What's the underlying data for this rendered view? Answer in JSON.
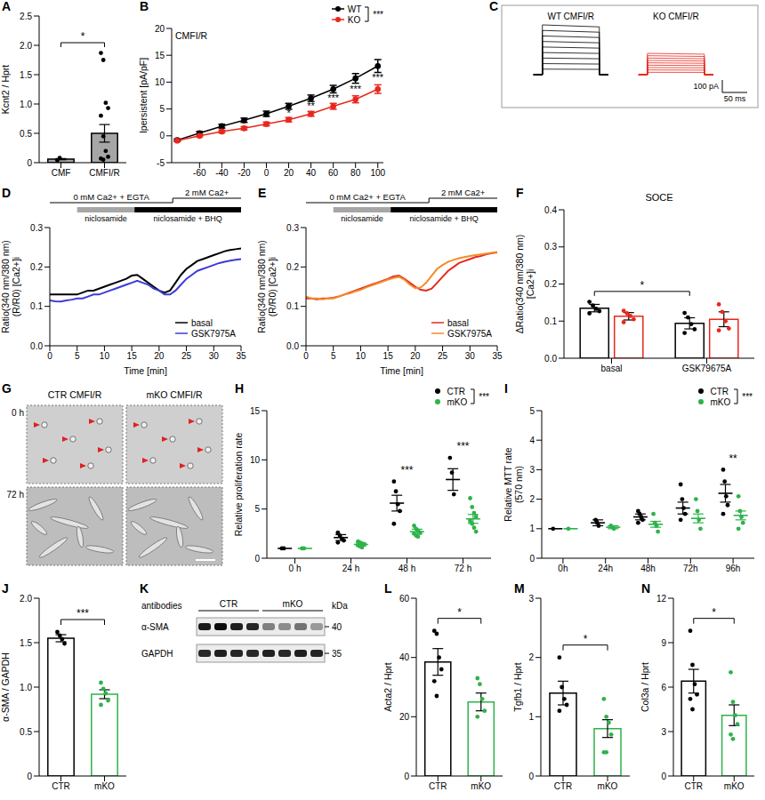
{
  "chart_data": [
    {
      "panel": "A",
      "type": "bar",
      "categories": [
        "CMF",
        "CMFI/R"
      ],
      "values": [
        0.06,
        0.5
      ],
      "errors": [
        0.01,
        0.15
      ],
      "points": [
        [
          0.04,
          0.08
        ],
        [
          1.87,
          1.75,
          1.02,
          0.93,
          0.8,
          0.45,
          0.2,
          0.1,
          0.07,
          0.05
        ]
      ],
      "color": "#a6a6a6",
      "y_label": "Kcnt2 / Hprt",
      "ylim": [
        0,
        2.5
      ],
      "yticks": [
        0,
        0.5,
        {
          "value": 1,
          "label": "1.0"
        },
        1.5,
        {
          "value": 2,
          "label": "2.0"
        },
        2.5
      ],
      "significance": {
        "between": [
          0,
          1
        ],
        "label": "*"
      }
    },
    {
      "panel": "B",
      "type": "line",
      "title": "CMFI/R",
      "x": [
        -80,
        -60,
        -40,
        -20,
        0,
        20,
        40,
        60,
        80,
        100
      ],
      "series": [
        {
          "name": "WT",
          "color": "#000000",
          "values": [
            -0.8,
            0.5,
            1.8,
            2.9,
            4.1,
            5.5,
            7.0,
            8.7,
            10.7,
            13.0
          ],
          "errors": [
            0.2,
            0.3,
            0.35,
            0.4,
            0.5,
            0.55,
            0.6,
            0.7,
            0.9,
            1.2
          ]
        },
        {
          "name": "KO",
          "color": "#e8281e",
          "values": [
            -0.9,
            0.0,
            0.8,
            1.4,
            2.2,
            3.0,
            4.1,
            5.5,
            6.8,
            8.7
          ],
          "errors": [
            0.15,
            0.2,
            0.25,
            0.3,
            0.35,
            0.4,
            0.45,
            0.55,
            0.65,
            0.8
          ]
        }
      ],
      "marker": "circle",
      "y_label": "Ipersistent [pA/pF]",
      "xlim": [
        -85,
        105
      ],
      "xticks": [
        -60,
        -40,
        -20,
        0,
        20,
        40,
        60,
        80,
        100
      ],
      "ylim": [
        -5,
        20
      ],
      "yticks": [
        -5,
        0,
        5,
        10,
        15,
        20
      ],
      "legend": "upper right",
      "legend_significance": "***",
      "annotations": [
        {
          "x": 20,
          "label": "*"
        },
        {
          "x": 40,
          "label": "**"
        },
        {
          "x": 60,
          "label": "***"
        },
        {
          "x": 80,
          "label": "***"
        },
        {
          "x": 100,
          "label": "***"
        }
      ]
    },
    {
      "panel": "C",
      "type": "traces",
      "labels": [
        "WT CMFI/R",
        "KO CMFI/R"
      ],
      "colors": [
        "#000000",
        "#e8281e"
      ],
      "scale_y": "100 pA",
      "scale_x": "50 ms"
    },
    {
      "panel": "D",
      "type": "line",
      "x": [
        0,
        1,
        2,
        3,
        4,
        5,
        6,
        7,
        8,
        9,
        10,
        11,
        12,
        13,
        14,
        15,
        16,
        17,
        18,
        19,
        20,
        21,
        22,
        23,
        24,
        25,
        26,
        27,
        28,
        29,
        30,
        31,
        32,
        33,
        34,
        35
      ],
      "series": [
        {
          "name": "basal",
          "color": "#000000",
          "values": [
            0.13,
            0.13,
            0.13,
            0.13,
            0.13,
            0.13,
            0.135,
            0.14,
            0.14,
            0.145,
            0.15,
            0.155,
            0.16,
            0.165,
            0.17,
            0.178,
            0.18,
            0.17,
            0.16,
            0.15,
            0.14,
            0.135,
            0.14,
            0.16,
            0.18,
            0.195,
            0.205,
            0.215,
            0.22,
            0.225,
            0.23,
            0.235,
            0.24,
            0.243,
            0.245,
            0.247
          ]
        },
        {
          "name": "GSK7975A",
          "color": "#3b3bd9",
          "values": [
            0.115,
            0.113,
            0.112,
            0.115,
            0.117,
            0.12,
            0.12,
            0.125,
            0.13,
            0.13,
            0.135,
            0.14,
            0.145,
            0.15,
            0.155,
            0.16,
            0.165,
            0.16,
            0.155,
            0.145,
            0.14,
            0.13,
            0.13,
            0.14,
            0.155,
            0.17,
            0.18,
            0.19,
            0.195,
            0.2,
            0.205,
            0.21,
            0.213,
            0.216,
            0.218,
            0.22
          ]
        }
      ],
      "x_label": "Time [min]",
      "y_label": [
        "Ratio(340 nm/380 nm)",
        "(R/R0) [Ca2+]i"
      ],
      "xlim": [
        0,
        35
      ],
      "xticks": [
        0,
        5,
        10,
        15,
        20,
        25,
        30,
        35
      ],
      "ylim": [
        0,
        0.3
      ],
      "yticks": [
        {
          "value": 0,
          "label": "0.0"
        },
        0.1,
        0.2,
        0.3
      ],
      "legend": "lower right",
      "protocol": {
        "solutions": [
          {
            "label": "0 mM Ca2+ + EGTA",
            "start": 0,
            "end": 22.5
          },
          {
            "label": "2 mM Ca2+",
            "start": 22.5,
            "end": 35
          }
        ],
        "treatments": [
          {
            "label": "niclosamide",
            "start": 5,
            "end": 15.5,
            "color": "#a6a6a6"
          },
          {
            "label": "niclosamide + BHQ",
            "start": 15.5,
            "end": 35,
            "color": "#000000"
          }
        ]
      }
    },
    {
      "panel": "E",
      "type": "line",
      "x": [
        0,
        1,
        2,
        3,
        4,
        5,
        6,
        7,
        8,
        9,
        10,
        11,
        12,
        13,
        14,
        15,
        16,
        17,
        18,
        19,
        20,
        21,
        22,
        23,
        24,
        25,
        26,
        27,
        28,
        29,
        30,
        31,
        32,
        33,
        34,
        35
      ],
      "series": [
        {
          "name": "basal",
          "color": "#e8281e",
          "values": [
            0.12,
            0.12,
            0.118,
            0.12,
            0.12,
            0.122,
            0.125,
            0.13,
            0.135,
            0.14,
            0.145,
            0.15,
            0.155,
            0.16,
            0.165,
            0.17,
            0.176,
            0.178,
            0.17,
            0.16,
            0.15,
            0.142,
            0.14,
            0.145,
            0.16,
            0.175,
            0.19,
            0.2,
            0.21,
            0.215,
            0.22,
            0.225,
            0.228,
            0.232,
            0.235,
            0.237
          ]
        },
        {
          "name": "GSK7975A",
          "color": "#f28c28",
          "values": [
            0.125,
            0.12,
            0.12,
            0.118,
            0.12,
            0.12,
            0.125,
            0.13,
            0.133,
            0.138,
            0.142,
            0.148,
            0.153,
            0.158,
            0.163,
            0.168,
            0.172,
            0.175,
            0.168,
            0.155,
            0.146,
            0.148,
            0.16,
            0.178,
            0.195,
            0.205,
            0.213,
            0.218,
            0.222,
            0.225,
            0.228,
            0.23,
            0.232,
            0.234,
            0.236,
            0.238
          ]
        }
      ],
      "x_label": "Time [min]",
      "y_label": [
        "Ratio(340 nm/380 nm)",
        "(R/R0) [Ca2+]i"
      ],
      "xlim": [
        0,
        35
      ],
      "xticks": [
        0,
        5,
        10,
        15,
        20,
        25,
        30,
        35
      ],
      "ylim": [
        0,
        0.3
      ],
      "yticks": [
        {
          "value": 0,
          "label": "0.0"
        },
        0.1,
        0.2,
        0.3
      ],
      "legend": "lower right",
      "protocol": {
        "solutions": [
          {
            "label": "0 mM Ca2+ + EGTA",
            "start": 0,
            "end": 22.5
          },
          {
            "label": "2 mM Ca2+",
            "start": 22.5,
            "end": 35
          }
        ],
        "treatments": [
          {
            "label": "niclosamide",
            "start": 5,
            "end": 15.5,
            "color": "#a6a6a6"
          },
          {
            "label": "niclosamide + BHQ",
            "start": 15.5,
            "end": 35,
            "color": "#000000"
          }
        ]
      }
    },
    {
      "panel": "F",
      "type": "bar",
      "title": "SOCE",
      "categories": [
        "basal",
        "GSK79675A"
      ],
      "series": [
        {
          "color": "#000000",
          "values": [
            0.135,
            0.094
          ],
          "errors": [
            0.01,
            0.015
          ],
          "points": [
            [
              0.152,
              0.142,
              0.133,
              0.127,
              0.121
            ],
            [
              0.122,
              0.11,
              0.092,
              0.078,
              0.068
            ]
          ]
        },
        {
          "color": "#e8281e",
          "values": [
            0.113,
            0.105
          ],
          "errors": [
            0.01,
            0.02
          ],
          "points": [
            [
              0.128,
              0.121,
              0.114,
              0.105,
              0.097
            ],
            [
              0.145,
              0.125,
              0.1,
              0.08,
              0.075
            ]
          ]
        }
      ],
      "y_label": [
        "ΔRatio(340 nm/380 nm)",
        "[Ca2+]i"
      ],
      "ylim": [
        0,
        0.4
      ],
      "yticks": [
        {
          "value": 0,
          "label": "0.0"
        },
        0.1,
        0.2,
        0.3,
        0.4
      ],
      "significance": {
        "between": [
          [
            0,
            0
          ],
          [
            1,
            0
          ]
        ],
        "label": "*"
      }
    },
    {
      "panel": "G",
      "type": "image",
      "columns": [
        "CTR CMFI/R",
        "mKO CMFI/R"
      ],
      "rows": [
        "0 h",
        "72 h"
      ]
    },
    {
      "panel": "H",
      "type": "dot",
      "marker": "circle",
      "categories": [
        "0 h",
        "24 h",
        "48 h",
        "72 h"
      ],
      "series": [
        {
          "name": "CTR",
          "color": "#000000",
          "values": [
            1,
            2.1,
            5.6,
            8.0
          ],
          "errors": [
            0,
            0.3,
            0.8,
            1.1
          ],
          "points": [
            [
              1,
              1
            ],
            [
              2.6,
              2.3,
              2.0,
              1.8,
              1.6
            ],
            [
              7.8,
              6.8,
              5.5,
              4.8,
              3.5
            ],
            [
              10.2,
              8.7,
              6.5
            ]
          ]
        },
        {
          "name": "mKO",
          "color": "#2db34a",
          "values": [
            1,
            1.4,
            2.7,
            4.0
          ],
          "errors": [
            0,
            0.15,
            0.25,
            0.45
          ],
          "points": [
            [
              1,
              1
            ],
            [
              1.7,
              1.6,
              1.5,
              1.4,
              1.3,
              1.2,
              1.1
            ],
            [
              3.3,
              3.0,
              2.8,
              2.6,
              2.5,
              2.3,
              2.2
            ],
            [
              6.1,
              5.2,
              4.6,
              4.2,
              3.8,
              3.5,
              3.1,
              2.7
            ]
          ]
        }
      ],
      "y_label": "Relative proliferation rate",
      "ylim": [
        0,
        15
      ],
      "yticks": [
        0,
        5,
        10,
        15
      ],
      "legend": "upper right",
      "legend_significance": "***",
      "annotations": [
        {
          "category": 2,
          "label": "***"
        },
        {
          "category": 3,
          "label": "***"
        }
      ]
    },
    {
      "panel": "I",
      "type": "dot",
      "marker": "circle",
      "categories": [
        "0h",
        "24h",
        "48h",
        "72h",
        "96h"
      ],
      "series": [
        {
          "name": "CTR",
          "color": "#000000",
          "values": [
            1,
            1.2,
            1.4,
            1.7,
            2.2
          ],
          "errors": [
            0,
            0.1,
            0.1,
            0.2,
            0.3
          ],
          "points": [
            [
              1
            ],
            [
              1.3,
              1.2,
              1.1
            ],
            [
              1.6,
              1.5,
              1.4,
              1.3,
              1.2
            ],
            [
              2.5,
              2.0,
              1.7,
              1.5,
              1.3
            ],
            [
              3.0,
              2.6,
              2.1,
              1.8,
              1.5
            ]
          ]
        },
        {
          "name": "mKO",
          "color": "#2db34a",
          "values": [
            1,
            1.05,
            1.15,
            1.35,
            1.45
          ],
          "errors": [
            0,
            0.05,
            0.1,
            0.15,
            0.15
          ],
          "points": [
            [
              1
            ],
            [
              1.1,
              1.05,
              1.0
            ],
            [
              1.5,
              1.2,
              1.1,
              0.9
            ],
            [
              2.0,
              1.6,
              1.3,
              1.0
            ],
            [
              2.1,
              1.6,
              1.4,
              1.2,
              1.0
            ]
          ]
        }
      ],
      "y_label": [
        "Relative MTT rate",
        "(570 nm)"
      ],
      "ylim": [
        0,
        5
      ],
      "yticks": [
        0,
        1,
        2,
        3,
        4,
        5
      ],
      "legend": "upper right",
      "legend_significance": "***",
      "annotations": [
        {
          "category": 4,
          "label": "**"
        }
      ]
    },
    {
      "panel": "J",
      "type": "bar",
      "categories": [
        "CTR",
        "mKO"
      ],
      "values": [
        1.55,
        0.92
      ],
      "errors": [
        0.04,
        0.05
      ],
      "points": [
        [
          1.62,
          1.58,
          1.54,
          1.49
        ],
        [
          1.05,
          0.98,
          0.93,
          0.85,
          0.8
        ]
      ],
      "colors": [
        "#000000",
        "#2db34a"
      ],
      "y_label": "α-SMA / GAPDH",
      "ylim": [
        0,
        2
      ],
      "yticks": [
        0,
        0.5,
        {
          "value": 1,
          "label": "1.0"
        },
        1.5,
        {
          "value": 2,
          "label": "2.0"
        }
      ],
      "significance": {
        "between": [
          0,
          1
        ],
        "label": "***"
      }
    },
    {
      "panel": "K",
      "type": "blot",
      "header": "antibodies",
      "unit": "kDa",
      "groups": [
        {
          "label": "CTR",
          "lanes": 4
        },
        {
          "label": "mKO",
          "lanes": 4
        }
      ],
      "bands": [
        {
          "label": "α-SMA",
          "kda": 40,
          "intensities": [
            0.9,
            0.95,
            0.88,
            0.85,
            0.5,
            0.45,
            0.55,
            0.4
          ]
        },
        {
          "label": "GAPDH",
          "kda": 35,
          "intensities": [
            0.85,
            0.88,
            0.86,
            0.84,
            0.87,
            0.85,
            0.88,
            0.86
          ]
        }
      ]
    },
    {
      "panel": "L",
      "type": "bar",
      "categories": [
        "CTR",
        "mKO"
      ],
      "values": [
        38.5,
        25
      ],
      "errors": [
        4.5,
        3
      ],
      "points": [
        [
          49,
          48,
          40,
          36,
          32,
          27
        ],
        [
          33,
          31,
          26,
          22,
          20
        ]
      ],
      "colors": [
        "#000000",
        "#2db34a"
      ],
      "y_label": "Acta2 / Hprt",
      "ylim": [
        0,
        60
      ],
      "yticks": [
        0,
        20,
        40,
        60
      ],
      "significance": {
        "between": [
          0,
          1
        ],
        "label": "*"
      }
    },
    {
      "panel": "M",
      "type": "bar",
      "categories": [
        "CTR",
        "mKO"
      ],
      "values": [
        1.4,
        0.8
      ],
      "errors": [
        0.2,
        0.15
      ],
      "points": [
        [
          2.0,
          1.5,
          1.3,
          1.2,
          1.1
        ],
        [
          1.3,
          1.0,
          0.9,
          0.7,
          0.4,
          0.4
        ]
      ],
      "colors": [
        "#000000",
        "#2db34a"
      ],
      "y_label": "Tgfb1 / Hprt",
      "ylim": [
        0,
        3
      ],
      "yticks": [
        0,
        1,
        2,
        3
      ],
      "significance": {
        "between": [
          0,
          1
        ],
        "label": "*"
      }
    },
    {
      "panel": "N",
      "type": "bar",
      "categories": [
        "CTR",
        "mKO"
      ],
      "values": [
        6.4,
        4.1
      ],
      "errors": [
        0.8,
        0.7
      ],
      "points": [
        [
          9.8,
          7.5,
          6.2,
          5.5,
          5.2,
          4.5
        ],
        [
          7.0,
          5.0,
          4.1,
          3.5,
          2.8,
          2.5
        ]
      ],
      "colors": [
        "#000000",
        "#2db34a"
      ],
      "y_label": "Col3a / Hprt",
      "ylim": [
        0,
        12
      ],
      "yticks": [
        0,
        3,
        6,
        9,
        12
      ],
      "significance": {
        "between": [
          0,
          1
        ],
        "label": "*"
      }
    }
  ]
}
